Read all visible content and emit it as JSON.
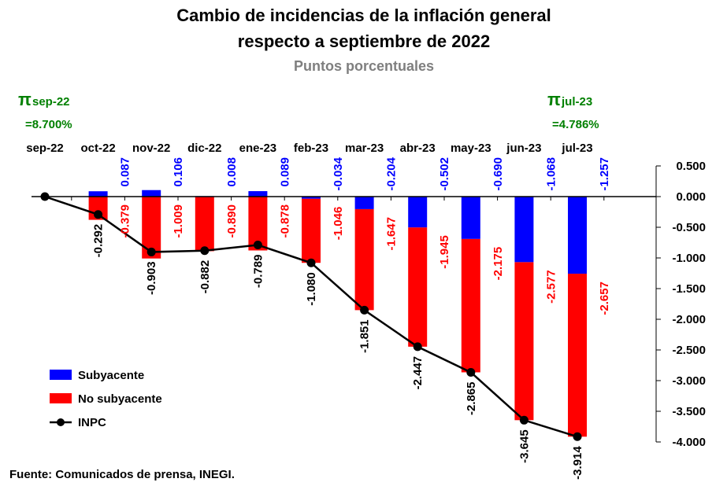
{
  "chart_data": {
    "type": "bar",
    "stacked": true,
    "title_line1": "Cambio de incidencias de la inflación general",
    "title_line2": "respecto a septiembre de 2022",
    "subtitle": "Puntos porcentuales",
    "categories": [
      "sep-22",
      "oct-22",
      "nov-22",
      "dic-22",
      "ene-23",
      "feb-23",
      "mar-23",
      "abr-23",
      "may-23",
      "jun-23",
      "jul-23"
    ],
    "series": [
      {
        "name": "Subyacente",
        "color": "#0000ff",
        "values": [
          null,
          0.087,
          0.106,
          0.008,
          0.089,
          -0.034,
          -0.204,
          -0.502,
          -0.69,
          -1.068,
          -1.257
        ],
        "labels": [
          "",
          "0.087",
          "0.106",
          "0.008",
          "0.089",
          "-0.034",
          "-0.204",
          "-0.502",
          "-0.690",
          "-1.068",
          "-1.257"
        ]
      },
      {
        "name": "No subyacente",
        "color": "#ff0000",
        "values": [
          null,
          -0.379,
          -1.009,
          -0.89,
          -0.878,
          -1.046,
          -1.647,
          -1.945,
          -2.175,
          -2.577,
          -2.657
        ],
        "labels": [
          "",
          "-0.379",
          "-1.009",
          "-0.890",
          "-0.878",
          "-1.046",
          "-1.647",
          "-1.945",
          "-2.175",
          "-2.577",
          "-2.657"
        ]
      },
      {
        "name": "INPC",
        "type": "line",
        "color": "#000000",
        "values": [
          0.0,
          -0.292,
          -0.903,
          -0.882,
          -0.789,
          -1.08,
          -1.851,
          -2.447,
          -2.865,
          -3.645,
          -3.914
        ],
        "labels": [
          "",
          "-0.292",
          "-0.903",
          "-0.882",
          "-0.789",
          "-1.080",
          "-1.851",
          "-2.447",
          "-2.865",
          "-3.645",
          "-3.914"
        ]
      }
    ],
    "ylim": [
      -4.0,
      0.5
    ],
    "yticks": [
      0.5,
      0.0,
      -0.5,
      -1.0,
      -1.5,
      -2.0,
      -2.5,
      -3.0,
      -3.5,
      -4.0
    ],
    "ytick_labels": [
      "0.500",
      "0.000",
      "-0.500",
      "-1.000",
      "-1.500",
      "-2.000",
      "-2.500",
      "-3.000",
      "-3.500",
      "-4.000"
    ],
    "y_axis_side": "right",
    "grid": false,
    "legend_position": "bottom-left",
    "annotations": {
      "pi_symbol": "π",
      "left_label": "sep-22",
      "left_value": "=8.700%",
      "right_label": "jul-23",
      "right_value": "=4.786%"
    },
    "source": "Fuente: Comunicados de prensa, INEGI."
  }
}
